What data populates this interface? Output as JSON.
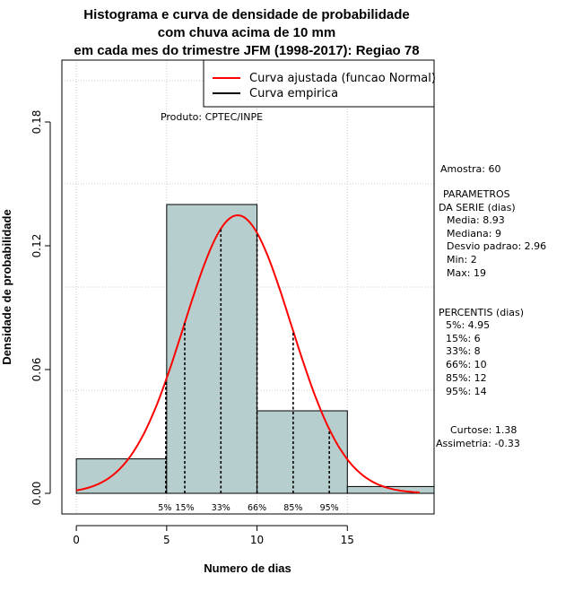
{
  "chart_data": {
    "type": "bar",
    "title_lines": [
      "Histograma e curva de densidade de probabilidade",
      "com chuva acima de 10 mm",
      "em cada mes do trimestre JFM (1998-2017): Regiao 78"
    ],
    "xlabel": "Numero de dias",
    "ylabel": "Densidade de probabilidade",
    "xlim": [
      -0.8,
      19.8
    ],
    "ylim": [
      -0.01,
      0.21
    ],
    "x_ticks": [
      0,
      5,
      10,
      15
    ],
    "y_ticks": [
      0.0,
      0.06,
      0.12,
      0.18
    ],
    "y_tick_labels": [
      "0.00",
      "0.06",
      "0.12",
      "0.18"
    ],
    "grid": true,
    "bins": [
      {
        "from": 0,
        "to": 5,
        "density": 0.0167
      },
      {
        "from": 5,
        "to": 10,
        "density": 0.14
      },
      {
        "from": 10,
        "to": 15,
        "density": 0.04
      },
      {
        "from": 15,
        "to": 20,
        "density": 0.0033
      }
    ],
    "bar_color": "#b7cece",
    "normal_fit": {
      "mean": 8.93,
      "sd": 2.96,
      "color": "#ff0000"
    },
    "legend": {
      "position": "top-right",
      "entries": [
        {
          "label": "Curva ajustada (funcao Normal)",
          "color": "#ff0000"
        },
        {
          "label": "Curva empirica",
          "color": "#000000"
        }
      ]
    },
    "percentile_marks": [
      {
        "label": "5%",
        "x": 4.95
      },
      {
        "label": "15%",
        "x": 6
      },
      {
        "label": "33%",
        "x": 8
      },
      {
        "label": "66%",
        "x": 10
      },
      {
        "label": "85%",
        "x": 12
      },
      {
        "label": "95%",
        "x": 14
      }
    ],
    "product_label": "Produto: CPTEC/INPE"
  },
  "stats_panel": {
    "sample": "Amostra: 60",
    "params_header_1": "PARAMETROS",
    "params_header_2": "DA SERIE (dias)",
    "params": [
      "Media: 8.93",
      "Mediana: 9",
      "Desvio padrao: 2.96",
      "Min: 2",
      "Max: 19"
    ],
    "percentis_header": "PERCENTIS (dias)",
    "percentis": [
      "5%: 4.95",
      "15%: 6",
      "33%: 8",
      "66%: 10",
      "85%: 12",
      "95%: 14"
    ],
    "curtose": "Curtose: 1.38",
    "assimetria": "Assimetria: -0.33"
  }
}
